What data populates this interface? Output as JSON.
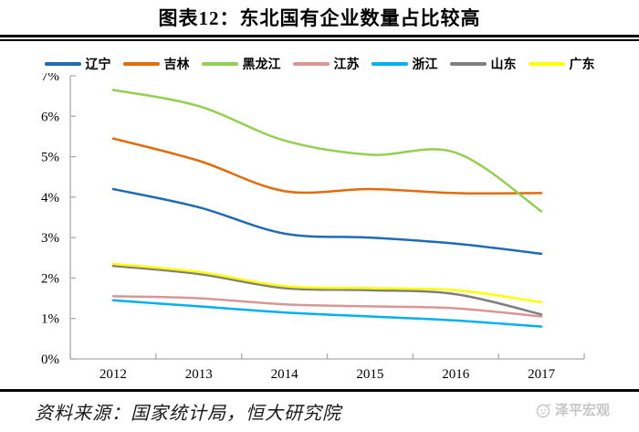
{
  "title": "图表12：东北国有企业数量占比较高",
  "source_note": "资料来源：国家统计局，恒大研究院",
  "watermark": {
    "label": "泽平宏观"
  },
  "colors": {
    "axis": "#ababab",
    "tick_label": "#000000",
    "rule": "#000000",
    "watermark_gray": "#c6c6c6"
  },
  "chart_data": {
    "type": "line",
    "title": "图表12：东北国有企业数量占比较高",
    "categories": [
      "2012",
      "2013",
      "2014",
      "2015",
      "2016",
      "2017"
    ],
    "series": [
      {
        "name": "辽宁",
        "color": "#1F6CB4",
        "values": [
          4.2,
          3.75,
          3.1,
          3.0,
          2.85,
          2.6
        ]
      },
      {
        "name": "吉林",
        "color": "#E36C0A",
        "values": [
          5.45,
          4.9,
          4.15,
          4.2,
          4.1,
          4.1
        ]
      },
      {
        "name": "黑龙江",
        "color": "#92D050",
        "values": [
          6.65,
          6.25,
          5.4,
          5.05,
          5.1,
          3.65
        ]
      },
      {
        "name": "江苏",
        "color": "#D99694",
        "values": [
          1.55,
          1.5,
          1.35,
          1.3,
          1.25,
          1.05
        ]
      },
      {
        "name": "浙江",
        "color": "#00B0F0",
        "values": [
          1.45,
          1.3,
          1.15,
          1.05,
          0.95,
          0.8
        ]
      },
      {
        "name": "山东",
        "color": "#7F7F7F",
        "values": [
          2.3,
          2.1,
          1.75,
          1.7,
          1.6,
          1.1
        ]
      },
      {
        "name": "广东",
        "color": "#FFFF00",
        "values": [
          2.35,
          2.15,
          1.8,
          1.75,
          1.7,
          1.4
        ]
      }
    ],
    "xlabel": "",
    "ylabel": "",
    "ylim": [
      0,
      7
    ],
    "y_tick_step": 1,
    "y_tick_labels": [
      "0%",
      "1%",
      "2%",
      "3%",
      "4%",
      "5%",
      "6%",
      "7%"
    ],
    "grid": false,
    "legend_position": "top"
  }
}
